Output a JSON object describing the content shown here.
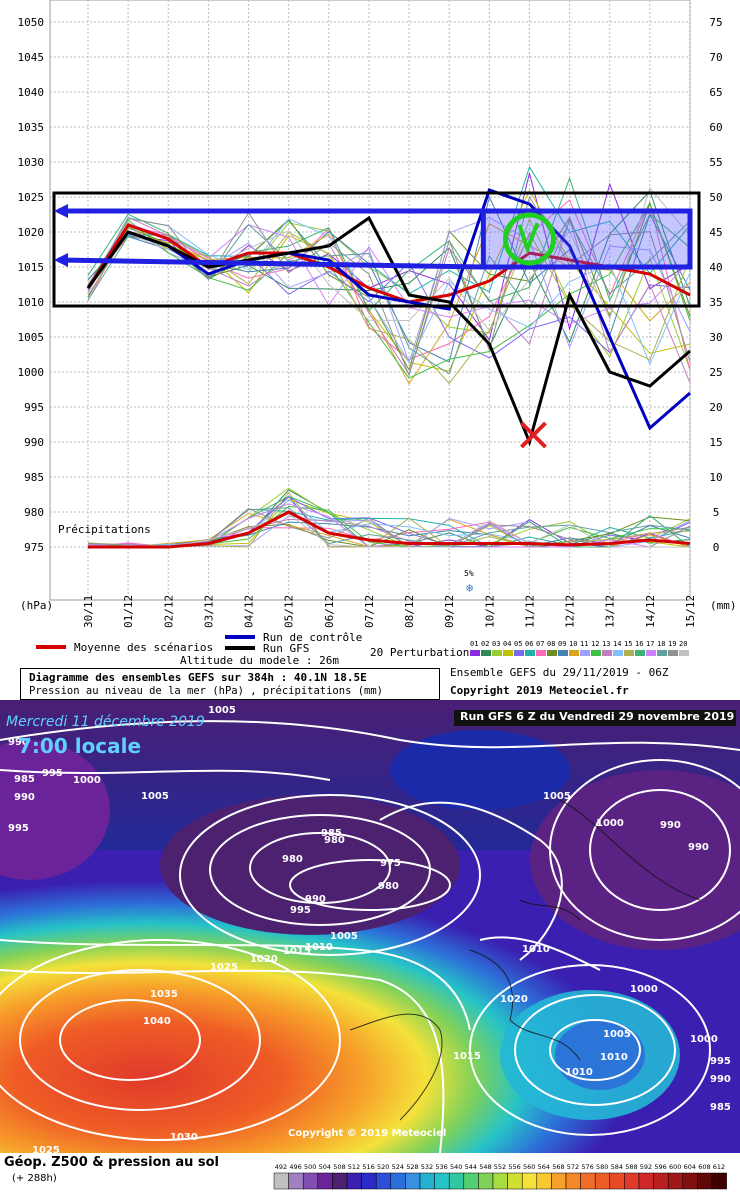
{
  "chart_data": {
    "type": "line",
    "title": "Diagramme des ensembles GEFS sur 384h : 40.1N 18.5E",
    "subtitle": "Pression au niveau de la mer (hPa) , précipitations (mm)",
    "altitude_label": "Altitude du modele : 26m",
    "ensemble_label": "Ensemble GEFS du 29/11/2019 - 06Z",
    "copyright": "Copyright 2019 Meteociel.fr",
    "ylabel_left": "(hPa)",
    "ylabel_right": "(mm)",
    "precip_label": "Précipitations",
    "snow_label": "5%",
    "ylim_left": [
      975,
      1050
    ],
    "yticks_left": [
      975,
      980,
      985,
      990,
      995,
      1000,
      1005,
      1010,
      1015,
      1020,
      1025,
      1030,
      1035,
      1040,
      1045,
      1050
    ],
    "ylim_right": [
      0,
      75
    ],
    "yticks_right": [
      0,
      5,
      10,
      15,
      20,
      25,
      30,
      35,
      40,
      45,
      50,
      55,
      60,
      65,
      70,
      75
    ],
    "x": [
      "30/11",
      "01/12",
      "02/12",
      "03/12",
      "04/12",
      "05/12",
      "06/12",
      "07/12",
      "08/12",
      "09/12",
      "10/12",
      "11/12",
      "12/12",
      "13/12",
      "14/12",
      "15/12"
    ],
    "legend": {
      "mean": "Moyenne des scénarios",
      "control": "Run de contrôle",
      "gfs": "Run GFS",
      "perturbations": "20 Perturbations",
      "perturbation_ids": [
        "01",
        "02",
        "03",
        "04",
        "05",
        "06",
        "07",
        "08",
        "09",
        "10",
        "11",
        "12",
        "13",
        "14",
        "15",
        "16",
        "17",
        "18",
        "19",
        "20"
      ]
    },
    "series": [
      {
        "name": "Moyenne des scénarios",
        "color": "#d40000",
        "values": [
          1012,
          1021,
          1019,
          1015,
          1017,
          1017,
          1015,
          1012,
          1010,
          1011,
          1013,
          1017,
          1016,
          1015,
          1014,
          1011
        ]
      },
      {
        "name": "Run de contrôle",
        "color": "#0000c0",
        "values": [
          1012,
          1020,
          1018,
          1014,
          1016,
          1017,
          1016,
          1011,
          1010,
          1009,
          1026,
          1024,
          1018,
          1005,
          992,
          997
        ]
      },
      {
        "name": "Run GFS",
        "color": "#000000",
        "values": [
          1012,
          1020,
          1018,
          1015,
          1016,
          1017,
          1018,
          1022,
          1011,
          1010,
          1004,
          990,
          1011,
          1000,
          998,
          1003
        ]
      }
    ],
    "precip_mean": [
      0,
      0,
      0,
      0.5,
      2,
      5,
      2,
      1,
      0.5,
      0.5,
      0.5,
      0.5,
      0.3,
      0.5,
      1,
      0.5
    ],
    "annotations": {
      "range_box_hpa": [
        1010,
        1025
      ],
      "marked_value": {
        "x": "11/12",
        "hpa": 991
      }
    },
    "grid": true
  },
  "map": {
    "header_line1": "Mercredi 11 décembre 2019",
    "header_line2": "7:00 locale",
    "run_label": "Run GFS 6 Z du Vendredi 29 novembre 2019",
    "copyright": "Copyright © 2019 Meteociel",
    "isobar_labels": [
      "1005",
      "990",
      "995",
      "985",
      "990",
      "1000",
      "1005",
      "995",
      "985",
      "980",
      "980",
      "975",
      "980",
      "990",
      "995",
      "1005",
      "1010",
      "1015",
      "1020",
      "1025",
      "1035",
      "1040",
      "1030",
      "1025",
      "1015",
      "1020",
      "1010",
      "1005",
      "1000",
      "990",
      "990",
      "1010",
      "1010",
      "1005",
      "1000",
      "995",
      "985",
      "990",
      "1000"
    ],
    "footer_title": "Géop. Z500 & pression au sol",
    "footer_sub": "(+ 288h)",
    "scale_labels": [
      "492",
      "496",
      "500",
      "504",
      "508",
      "512",
      "516",
      "520",
      "524",
      "528",
      "532",
      "536",
      "540",
      "544",
      "548",
      "552",
      "556",
      "560",
      "564",
      "568",
      "572",
      "576",
      "580",
      "584",
      "588",
      "592",
      "596",
      "600",
      "604",
      "608",
      "612"
    ]
  }
}
